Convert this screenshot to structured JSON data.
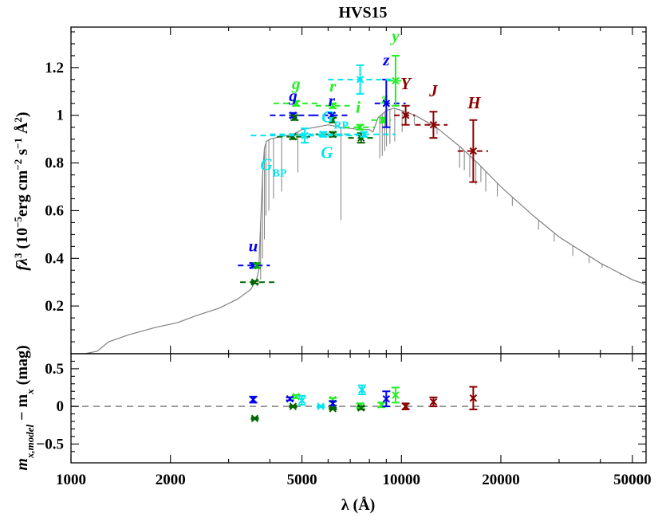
{
  "chart_data": {
    "type": "scatter",
    "title": "HVS15",
    "xlabel": "λ (Å)",
    "x_scale": "log",
    "xlim": [
      1000,
      55000
    ],
    "x_ticks": [
      "1000",
      "2000",
      "5000",
      "10000",
      "20000",
      "50000"
    ],
    "top_panel": {
      "ylabel_main": "fλ",
      "ylabel_exp": "3",
      "ylabel_rest": " (10",
      "ylabel_exp2": "−5",
      "ylabel_rest2": "erg cm",
      "ylabel_exp3": "−2",
      "ylabel_rest3": " s",
      "ylabel_exp4": "−1",
      "ylabel_rest4": " Å",
      "ylabel_exp5": "2",
      "ylabel_end": ")",
      "ylim": [
        0.0,
        1.37
      ],
      "y_ticks": [
        "0.2",
        "0.4",
        "0.6",
        "0.8",
        "1",
        "1.2"
      ],
      "model_color": "#808080",
      "model_curve": [
        [
          1100,
          0.0
        ],
        [
          1200,
          0.01
        ],
        [
          1300,
          0.05
        ],
        [
          1500,
          0.08
        ],
        [
          1800,
          0.11
        ],
        [
          2100,
          0.13
        ],
        [
          2400,
          0.16
        ],
        [
          2800,
          0.19
        ],
        [
          3200,
          0.23
        ],
        [
          3500,
          0.27
        ],
        [
          3640,
          0.31
        ],
        [
          3700,
          0.35
        ],
        [
          3750,
          0.55
        ],
        [
          3800,
          0.75
        ],
        [
          3850,
          0.86
        ],
        [
          3900,
          0.89
        ],
        [
          4000,
          0.9
        ],
        [
          4300,
          0.91
        ],
        [
          4700,
          0.92
        ],
        [
          5000,
          0.94
        ],
        [
          5500,
          0.95
        ],
        [
          6000,
          0.96
        ],
        [
          6500,
          0.95
        ],
        [
          7000,
          0.945
        ],
        [
          7500,
          0.94
        ],
        [
          8000,
          0.94
        ],
        [
          8200,
          0.93
        ],
        [
          8300,
          0.95
        ],
        [
          8500,
          0.99
        ],
        [
          9000,
          1.02
        ],
        [
          9500,
          1.03
        ],
        [
          10000,
          1.02
        ],
        [
          11000,
          1.0
        ],
        [
          12000,
          0.97
        ],
        [
          13000,
          0.94
        ],
        [
          15000,
          0.87
        ],
        [
          17000,
          0.8
        ],
        [
          20000,
          0.7
        ],
        [
          25000,
          0.58
        ],
        [
          30000,
          0.49
        ],
        [
          40000,
          0.38
        ],
        [
          50000,
          0.31
        ],
        [
          55000,
          0.29
        ]
      ],
      "model_lines": [
        [
          3750,
          0.31
        ],
        [
          3800,
          0.4
        ],
        [
          3850,
          0.48
        ],
        [
          3890,
          0.58
        ],
        [
          3970,
          0.6
        ],
        [
          4102,
          0.65
        ],
        [
          4341,
          0.68
        ],
        [
          4861,
          0.76
        ],
        [
          6563,
          0.56
        ],
        [
          8600,
          0.82
        ],
        [
          8750,
          0.83
        ],
        [
          8900,
          0.85
        ],
        [
          9015,
          0.87
        ],
        [
          9230,
          0.88
        ],
        [
          9546,
          0.89
        ],
        [
          10049,
          0.93
        ],
        [
          10938,
          0.96
        ],
        [
          12818,
          0.92
        ],
        [
          15000,
          0.78
        ],
        [
          15500,
          0.77
        ],
        [
          16100,
          0.74
        ],
        [
          16800,
          0.71
        ],
        [
          17400,
          0.72
        ],
        [
          18000,
          0.68
        ],
        [
          19500,
          0.66
        ],
        [
          21660,
          0.62
        ],
        [
          26000,
          0.52
        ],
        [
          29000,
          0.47
        ],
        [
          33000,
          0.41
        ],
        [
          37000,
          0.38
        ],
        [
          40500,
          0.36
        ],
        [
          46000,
          0.33
        ]
      ],
      "photometry": [
        {
          "label": "u",
          "color": "#0000ee",
          "x": 3560,
          "y": 0.37,
          "err": 0.01,
          "w": [
            3200,
            4000
          ],
          "lx": 3560,
          "ly": 0.43
        },
        {
          "label": "",
          "color": "#00aa00",
          "x": 3650,
          "y": 0.37,
          "err": 0.01,
          "w": [
            3640,
            3660
          ],
          "lx": 0,
          "ly": 0
        },
        {
          "label": "",
          "color": "#006400",
          "x": 3600,
          "y": 0.3,
          "err": 0.005,
          "w": [
            3250,
            4150
          ],
          "lx": 0,
          "ly": 0
        },
        {
          "label": "g",
          "color": "#22ee22",
          "x": 4800,
          "y": 1.05,
          "err": 0.01,
          "w": [
            4100,
            5600
          ],
          "lx": 4800,
          "ly": 1.11
        },
        {
          "label": "g",
          "color": "#0000ee",
          "x": 4700,
          "y": 1.0,
          "err": 0.01,
          "w": [
            4000,
            5500
          ],
          "lx": 4700,
          "ly": 1.06
        },
        {
          "label": "",
          "color": "#006400",
          "x": 4700,
          "y": 0.91,
          "err": 0.01,
          "w": [
            4200,
            5300
          ],
          "lx": 0,
          "ly": 0
        },
        {
          "label": "",
          "color": "#006400",
          "x": 4750,
          "y": 0.99,
          "err": 0.01,
          "w": [
            4700,
            4800
          ],
          "lx": 0,
          "ly": 0
        },
        {
          "label": "r",
          "color": "#22ee22",
          "x": 6200,
          "y": 1.04,
          "err": 0.01,
          "w": [
            5500,
            7000
          ],
          "lx": 6200,
          "ly": 1.1
        },
        {
          "label": "r",
          "color": "#0000ee",
          "x": 6150,
          "y": 1.0,
          "err": 0.01,
          "w": [
            5400,
            6900
          ],
          "lx": 6150,
          "ly": 1.04
        },
        {
          "label": "",
          "color": "#006400",
          "x": 6200,
          "y": 0.98,
          "err": 0.01,
          "w": [
            6150,
            6250
          ],
          "lx": 0,
          "ly": 0
        },
        {
          "label": "",
          "color": "#006400",
          "x": 6200,
          "y": 0.92,
          "err": 0.01,
          "w": [
            5500,
            7000
          ],
          "lx": 0,
          "ly": 0
        },
        {
          "label": "i",
          "color": "#22ee22",
          "x": 7500,
          "y": 0.95,
          "err": 0.01,
          "w": [
            6700,
            8300
          ],
          "lx": 7400,
          "ly": 1.01
        },
        {
          "label": "",
          "color": "#006400",
          "x": 7550,
          "y": 0.905,
          "err": 0.02,
          "w": [
            6900,
            8200
          ],
          "lx": 0,
          "ly": 0
        },
        {
          "label": "z",
          "color": "#22ee22",
          "x": 8800,
          "y": 0.98,
          "err": 0.01,
          "w": [
            8100,
            9300
          ],
          "lx": 8900,
          "ly": 1.05
        },
        {
          "label": "z",
          "color": "#0000ee",
          "x": 9000,
          "y": 1.05,
          "err": 0.1,
          "w": [
            8300,
            10300
          ],
          "lx": 9000,
          "ly": 1.21
        },
        {
          "label": "y",
          "color": "#22ee22",
          "x": 9600,
          "y": 1.145,
          "err": 0.105,
          "w": [
            9100,
            10000
          ],
          "lx": 9600,
          "ly": 1.31
        },
        {
          "label": "Y",
          "color": "#8b0000",
          "x": 10300,
          "y": 1.0,
          "err": 0.04,
          "w": [
            9500,
            11000
          ],
          "lx": 10300,
          "ly": 1.11
        },
        {
          "label": "J",
          "color": "#8b0000",
          "x": 12500,
          "y": 0.96,
          "err": 0.055,
          "w": [
            11000,
            13800
          ],
          "lx": 12500,
          "ly": 1.08
        },
        {
          "label": "H",
          "color": "#8b0000",
          "x": 16500,
          "y": 0.85,
          "err": 0.13,
          "w": [
            14800,
            18300
          ],
          "lx": 16600,
          "ly": 1.03
        },
        {
          "label": "",
          "color": "#00e5ee",
          "x": 7500,
          "y": 1.15,
          "err": 0.06,
          "w": [
            6000,
            9500
          ],
          "lx": 0,
          "ly": 0
        },
        {
          "label": "",
          "color": "#00e5ee",
          "x": 5800,
          "y": 0.92,
          "err": 0.01,
          "w": [
            4000,
            6800
          ],
          "lx": 0,
          "ly": 0
        },
        {
          "label": "",
          "color": "#00e5ee",
          "x": 7700,
          "y": 0.92,
          "err": 0.01,
          "w": [
            6300,
            9600
          ],
          "lx": 0,
          "ly": 0
        },
        {
          "label": "",
          "color": "#00e5ee",
          "x": 5100,
          "y": 0.915,
          "err": 0.03,
          "w": [
            3500,
            7400
          ],
          "lx": 0,
          "ly": 0
        }
      ],
      "gaia_labels": [
        {
          "main": "G",
          "sub": "BP",
          "color": "#00e5ee",
          "x": 4100,
          "y": 0.77
        },
        {
          "main": "G",
          "sub": "",
          "color": "#00e5ee",
          "x": 5950,
          "y": 0.82
        },
        {
          "main": "G",
          "sub": "RP",
          "color": "#00e5ee",
          "x": 6300,
          "y": 0.97
        }
      ]
    },
    "bottom_panel": {
      "ylabel_a": "m",
      "ylabel_a_sub": "x,model",
      "ylabel_b": " − m",
      "ylabel_b_sub": "x",
      "ylabel_c": " (mag)",
      "ylim": [
        -0.75,
        0.7
      ],
      "y_ticks": [
        "0.5",
        "0",
        "−0.5"
      ],
      "y_tick_values": [
        0.5,
        0,
        -0.5
      ],
      "zero_line_color": "#808080",
      "residuals": [
        {
          "color": "#0000ee",
          "x": 3560,
          "y": 0.09,
          "err": 0.04
        },
        {
          "color": "#006400",
          "x": 3600,
          "y": -0.16,
          "err": 0.01
        },
        {
          "color": "#0000ee",
          "x": 4600,
          "y": 0.1,
          "err": 0.02
        },
        {
          "color": "#22ee22",
          "x": 4800,
          "y": 0.13,
          "err": 0.02
        },
        {
          "color": "#006400",
          "x": 4700,
          "y": 0.0,
          "err": 0.01
        },
        {
          "color": "#00e5ee",
          "x": 5000,
          "y": 0.08,
          "err": 0.06
        },
        {
          "color": "#00e5ee",
          "x": 5700,
          "y": 0.0,
          "err": 0.01
        },
        {
          "color": "#22ee22",
          "x": 6200,
          "y": 0.09,
          "err": 0.02
        },
        {
          "color": "#0000ee",
          "x": 6200,
          "y": 0.04,
          "err": 0.03
        },
        {
          "color": "#006400",
          "x": 6200,
          "y": -0.03,
          "err": 0.01
        },
        {
          "color": "#22ee22",
          "x": 7500,
          "y": 0.01,
          "err": 0.03
        },
        {
          "color": "#00e5ee",
          "x": 7600,
          "y": 0.22,
          "err": 0.06
        },
        {
          "color": "#006400",
          "x": 7550,
          "y": -0.02,
          "err": 0.02
        },
        {
          "color": "#22ee22",
          "x": 8700,
          "y": 0.02,
          "err": 0.03
        },
        {
          "color": "#0000ee",
          "x": 9000,
          "y": 0.1,
          "err": 0.1
        },
        {
          "color": "#22ee22",
          "x": 9600,
          "y": 0.15,
          "err": 0.1
        },
        {
          "color": "#8b0000",
          "x": 10300,
          "y": 0.0,
          "err": 0.04
        },
        {
          "color": "#8b0000",
          "x": 12500,
          "y": 0.06,
          "err": 0.06
        },
        {
          "color": "#8b0000",
          "x": 16500,
          "y": 0.11,
          "err": 0.15
        }
      ]
    }
  }
}
